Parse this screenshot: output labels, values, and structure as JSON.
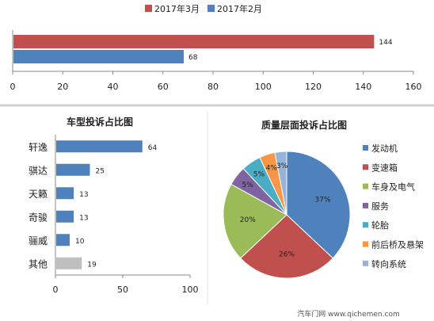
{
  "chart_data": [
    {
      "type": "bar",
      "orientation": "horizontal",
      "series": [
        {
          "name": "2017年3月",
          "values": [
            144
          ],
          "color": "#C0504D"
        },
        {
          "name": "2017年2月",
          "values": [
            68
          ],
          "color": "#4F81BD"
        }
      ],
      "xlim": [
        0,
        160
      ],
      "xticks": [
        "0",
        "20",
        "40",
        "60",
        "80",
        "100",
        "120",
        "140",
        "160"
      ],
      "legend": "top",
      "grid": false
    },
    {
      "type": "bar",
      "orientation": "horizontal",
      "title": "车型投诉占比图",
      "categories": [
        "轩逸",
        "骐达",
        "天籁",
        "奇骏",
        "骊威",
        "其他"
      ],
      "values": [
        64,
        25,
        13,
        13,
        10,
        19
      ],
      "colors": [
        "#4F81BD",
        "#4F81BD",
        "#4F81BD",
        "#4F81BD",
        "#4F81BD",
        "#BFBFBF"
      ],
      "xlim": [
        0,
        100
      ],
      "xticks": [
        "0",
        "50",
        "100"
      ],
      "grid": false
    },
    {
      "type": "pie",
      "title": "质量层面投诉占比图",
      "labels": [
        "发动机",
        "变速箱",
        "车身及电气",
        "服务",
        "轮胎",
        "前后桥及悬架",
        "转向系统"
      ],
      "values": [
        37,
        26,
        20,
        5,
        5,
        4,
        3
      ],
      "value_labels": [
        "37%",
        "26%",
        "20%",
        "5%",
        "5%",
        "4%",
        "3%"
      ],
      "colors": [
        "#4F81BD",
        "#C0504D",
        "#9BBB59",
        "#8064A2",
        "#4BACC6",
        "#F79646",
        "#95B3D7"
      ],
      "legend": "right"
    }
  ],
  "watermark": {
    "text": "汽车门网 www.qichemen.com"
  }
}
